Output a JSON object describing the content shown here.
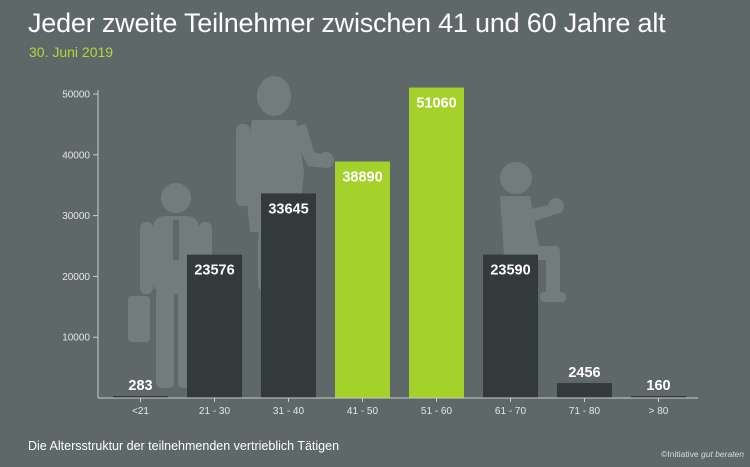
{
  "header": {
    "title": "Jeder zweite Teilnehmer zwischen 41 und 60 Jahre alt",
    "subtitle": "30. Juni 2019"
  },
  "footer": {
    "note": "Die Altersstruktur der teilnehmenden vertrieblich Tätigen",
    "credit_prefix": "©Initiative ",
    "credit_brand": "gut beraten"
  },
  "colors": {
    "background": "#5f6869",
    "bar_default": "#333a3b",
    "bar_highlight": "#a5d22a",
    "silhouette": "#737c7d",
    "axis": "#c8cccc",
    "tick_text": "#e4e6e6",
    "value_text": "#ffffff"
  },
  "chart_data": {
    "type": "bar",
    "title": "Jeder zweite Teilnehmer zwischen 41 und 60 Jahre alt",
    "subtitle": "30. Juni 2019",
    "xlabel": "",
    "ylabel": "",
    "categories": [
      "<21",
      "21 - 30",
      "31 - 40",
      "41 - 50",
      "51 - 60",
      "61 - 70",
      "71 - 80",
      "> 80"
    ],
    "values": [
      283,
      23576,
      33645,
      38890,
      51060,
      23590,
      2456,
      160
    ],
    "highlight": [
      false,
      false,
      false,
      true,
      true,
      false,
      false,
      false
    ],
    "ylim": [
      0,
      50000
    ],
    "yticks": [
      10000,
      20000,
      30000,
      40000,
      50000
    ],
    "ytick_labels": [
      "10000",
      "20000",
      "30000",
      "40000",
      "50000"
    ],
    "grid": false,
    "legend": "none"
  }
}
